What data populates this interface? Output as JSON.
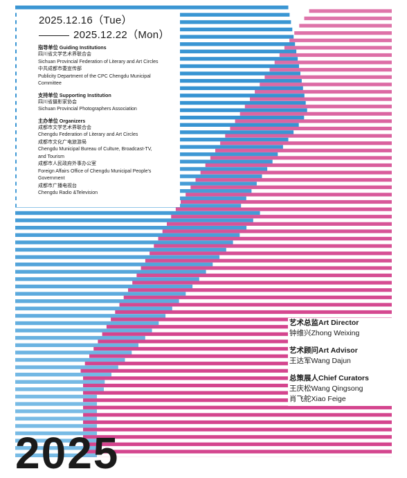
{
  "dates": {
    "start": "2025.12.16（Tue）",
    "end": "2025.12.22（Mon）"
  },
  "credits": [
    {
      "heading": "指导单位 Guiding Institutions",
      "lines": [
        "四川省文学艺术界联合会",
        "Sichuan Provincial Federation of Literary and Art Circles",
        "中共成都市委宣传部",
        "Publicity Department of the CPC Chengdu Municipal",
        "Committee"
      ]
    },
    {
      "heading": "支持单位 Supporting Institution",
      "lines": [
        "四川省摄影家协会",
        "Sichuan Provincial Photographers Association"
      ]
    },
    {
      "heading": "主办单位 Organizers",
      "lines": [
        "成都市文学艺术界联合会",
        "Chengdu Federation of Literary and Art Circles",
        "成都市文化广电旅游局",
        "Chengdu Municipal Bureau of Culture, Broadcast-TV,",
        "and Tourism",
        "成都市人民政府外事办公室",
        "Foreign Affairs Office of Chengdu Municipal People's",
        "Government",
        "成都市广播电视台",
        "Chengdu Radio &Television"
      ]
    }
  ],
  "staff": [
    {
      "role": "艺术总监Art Director",
      "names": [
        "钟维兴Zhong Weixing"
      ]
    },
    {
      "role": "艺术顾问Art Advisor",
      "names": [
        "王达军Wang Dajun"
      ]
    },
    {
      "role": "总策展人Chief Curators",
      "names": [
        "王庆松Wang Qingsong",
        "肖飞舵Xiao Feige"
      ]
    }
  ],
  "year": "2025",
  "colors": {
    "blue": "#2f8fd0",
    "blue_light": "#a6d6f2",
    "pink": "#d4458e",
    "pink_light": "#efbfd6",
    "text": "#1a1a1a"
  }
}
